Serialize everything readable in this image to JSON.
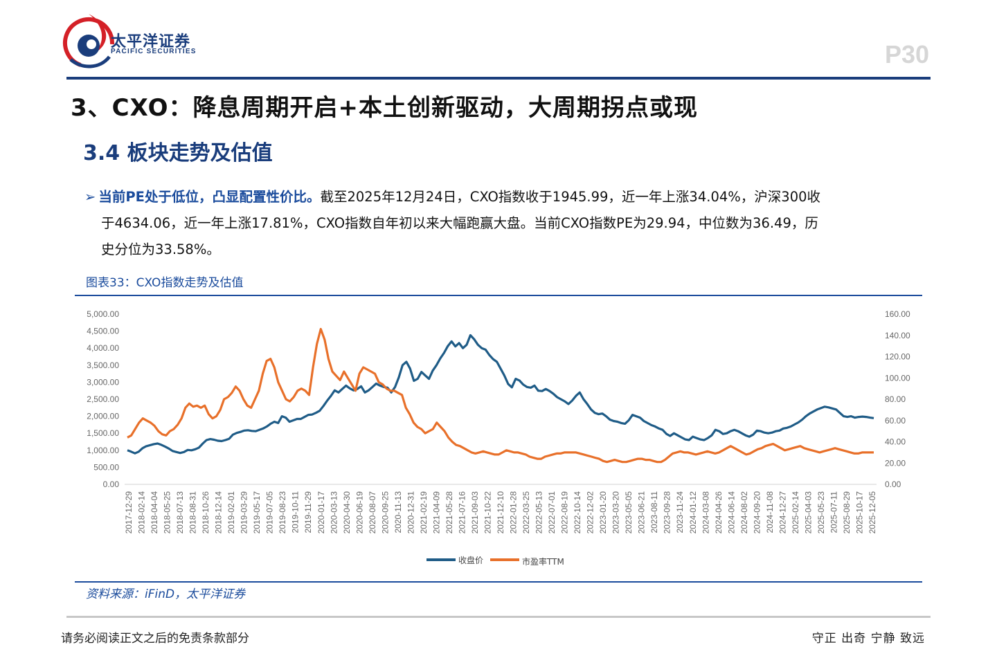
{
  "header": {
    "logo_cn": "太平洋证券",
    "logo_en": "PACIFIC SECURITIES",
    "page_number": "P30"
  },
  "title": "3、CXO：降息周期开启+本土创新驱动，大周期拐点或现",
  "subtitle": "3.4 板块走势及估值",
  "paragraph": {
    "lead": "当前PE处于低位，凸显配置性价比。",
    "line1_rest": "截至2025年12月24日，CXO指数收于1945.99，近一年上涨34.04%，沪深300收",
    "line2": "于4634.06，近一年上涨17.81%，CXO指数自年初以来大幅跑赢大盘。当前CXO指数PE为29.94，中位数为36.49，历",
    "line3": "史分位为33.58%。"
  },
  "figure": {
    "caption": "图表33：CXO指数走势及估值",
    "source": "资料来源：iFinD，太平洋证券"
  },
  "footer": {
    "disclaimer": "请务必阅读正文之后的免责条款部分",
    "slogan": "守正 出奇 宁静 致远"
  },
  "colors": {
    "brand_blue": "#1a3d7c",
    "series_close": "#1f5c87",
    "series_pe": "#e8702a",
    "logo_red": "#d42027"
  },
  "chart_data": {
    "type": "line",
    "title": "",
    "left_axis": {
      "ylim": [
        0,
        5000
      ],
      "ticks": [
        "0.00",
        "500.00",
        "1,000.00",
        "1,500.00",
        "2,000.00",
        "2,500.00",
        "3,000.00",
        "3,500.00",
        "4,000.00",
        "4,500.00",
        "5,000.00"
      ]
    },
    "right_axis": {
      "ylim": [
        0,
        160
      ],
      "ticks": [
        "0.00",
        "20.00",
        "40.00",
        "60.00",
        "80.00",
        "100.00",
        "120.00",
        "140.00",
        "160.00"
      ]
    },
    "x_labels": [
      "2017-12-29",
      "2018-02-14",
      "2018-04-04",
      "2018-05-25",
      "2018-07-13",
      "2018-08-31",
      "2018-10-26",
      "2018-12-14",
      "2019-02-01",
      "2019-03-29",
      "2019-05-17",
      "2019-07-05",
      "2019-08-23",
      "2019-10-11",
      "2019-11-29",
      "2020-01-17",
      "2020-03-13",
      "2020-04-30",
      "2020-06-19",
      "2020-08-07",
      "2020-09-25",
      "2020-11-13",
      "2020-12-31",
      "2021-02-19",
      "2021-04-09",
      "2021-05-28",
      "2021-07-16",
      "2021-09-03",
      "2021-10-22",
      "2021-12-10",
      "2022-01-28",
      "2022-03-25",
      "2022-05-13",
      "2022-07-01",
      "2022-08-19",
      "2022-10-14",
      "2022-12-02",
      "2023-01-20",
      "2023-03-20",
      "2023-05-05",
      "2023-06-21",
      "2023-08-11",
      "2023-09-28",
      "2023-11-24",
      "2024-01-12",
      "2024-03-08",
      "2024-04-26",
      "2024-06-14",
      "2024-08-02",
      "2024-09-20",
      "2024-11-08",
      "2024-12-27",
      "2025-02-14",
      "2025-04-03",
      "2025-05-23",
      "2025-07-11",
      "2025-08-29",
      "2025-10-17",
      "2025-12-05"
    ],
    "legend_placement": "bottom",
    "series": [
      {
        "name": "收盘价",
        "axis": "left",
        "values": [
          1000,
          960,
          910,
          960,
          1060,
          1120,
          1150,
          1180,
          1200,
          1160,
          1110,
          1050,
          980,
          950,
          920,
          950,
          1010,
          1000,
          1030,
          1080,
          1200,
          1300,
          1330,
          1310,
          1280,
          1270,
          1300,
          1340,
          1460,
          1510,
          1540,
          1580,
          1590,
          1570,
          1560,
          1600,
          1640,
          1700,
          1780,
          1840,
          1800,
          2000,
          1960,
          1840,
          1880,
          1920,
          1920,
          1980,
          2040,
          2050,
          2100,
          2160,
          2300,
          2460,
          2600,
          2760,
          2700,
          2800,
          2900,
          2820,
          2760,
          2800,
          2880,
          2700,
          2760,
          2860,
          2960,
          2900,
          2860,
          2840,
          2700,
          2860,
          3140,
          3500,
          3600,
          3400,
          3040,
          3100,
          3300,
          3200,
          3100,
          3340,
          3500,
          3700,
          3860,
          4060,
          4200,
          4050,
          4150,
          4000,
          4100,
          4380,
          4260,
          4100,
          4000,
          3960,
          3800,
          3680,
          3600,
          3400,
          3200,
          2950,
          2850,
          3100,
          3050,
          2930,
          2860,
          2840,
          2900,
          2750,
          2740,
          2800,
          2740,
          2660,
          2560,
          2500,
          2440,
          2360,
          2460,
          2600,
          2700,
          2500,
          2360,
          2200,
          2100,
          2060,
          2080,
          2000,
          1900,
          1860,
          1840,
          1800,
          1780,
          1880,
          2040,
          2000,
          1960,
          1860,
          1800,
          1740,
          1700,
          1640,
          1600,
          1480,
          1420,
          1500,
          1440,
          1380,
          1320,
          1300,
          1400,
          1360,
          1320,
          1300,
          1360,
          1440,
          1600,
          1560,
          1480,
          1500,
          1560,
          1600,
          1560,
          1500,
          1440,
          1400,
          1460,
          1580,
          1560,
          1520,
          1500,
          1520,
          1560,
          1580,
          1640,
          1660,
          1700,
          1760,
          1820,
          1900,
          2000,
          2080,
          2140,
          2200,
          2240,
          2280,
          2260,
          2230,
          2200,
          2100,
          2000,
          1980,
          2000,
          1960,
          1980,
          1990,
          1980,
          1960,
          1946
        ]
      },
      {
        "name": "市盈率TTM",
        "axis": "right",
        "values": [
          44,
          46,
          52,
          58,
          62,
          60,
          58,
          55,
          50,
          47,
          46,
          50,
          52,
          56,
          62,
          72,
          76,
          73,
          74,
          72,
          74,
          66,
          62,
          64,
          70,
          80,
          82,
          86,
          92,
          88,
          80,
          74,
          72,
          80,
          88,
          104,
          116,
          118,
          110,
          96,
          88,
          80,
          78,
          82,
          88,
          90,
          88,
          84,
          110,
          132,
          146,
          136,
          118,
          106,
          102,
          98,
          106,
          100,
          94,
          88,
          104,
          110,
          108,
          106,
          104,
          96,
          94,
          90,
          88,
          88,
          86,
          84,
          72,
          66,
          58,
          54,
          52,
          48,
          50,
          52,
          58,
          54,
          50,
          44,
          40,
          37,
          36,
          34,
          32,
          30,
          29,
          30,
          31,
          30,
          29,
          28,
          28,
          30,
          32,
          31,
          30,
          30,
          29,
          28,
          26,
          25,
          24,
          24,
          26,
          27,
          28,
          29,
          29,
          30,
          30,
          30,
          30,
          29,
          28,
          27,
          26,
          25,
          24,
          22,
          21,
          22,
          23,
          22,
          21,
          21,
          22,
          23,
          24,
          24,
          23,
          23,
          22,
          21,
          21,
          23,
          26,
          29,
          30,
          31,
          30,
          30,
          29,
          28,
          29,
          30,
          31,
          30,
          29,
          30,
          32,
          34,
          36,
          34,
          32,
          30,
          28,
          29,
          31,
          33,
          34,
          36,
          37,
          38,
          36,
          34,
          32,
          33,
          34,
          35,
          36,
          34,
          33,
          32,
          31,
          30,
          31,
          32,
          33,
          34,
          33,
          32,
          31,
          30,
          29,
          29,
          30,
          30,
          30,
          30
        ]
      }
    ]
  }
}
